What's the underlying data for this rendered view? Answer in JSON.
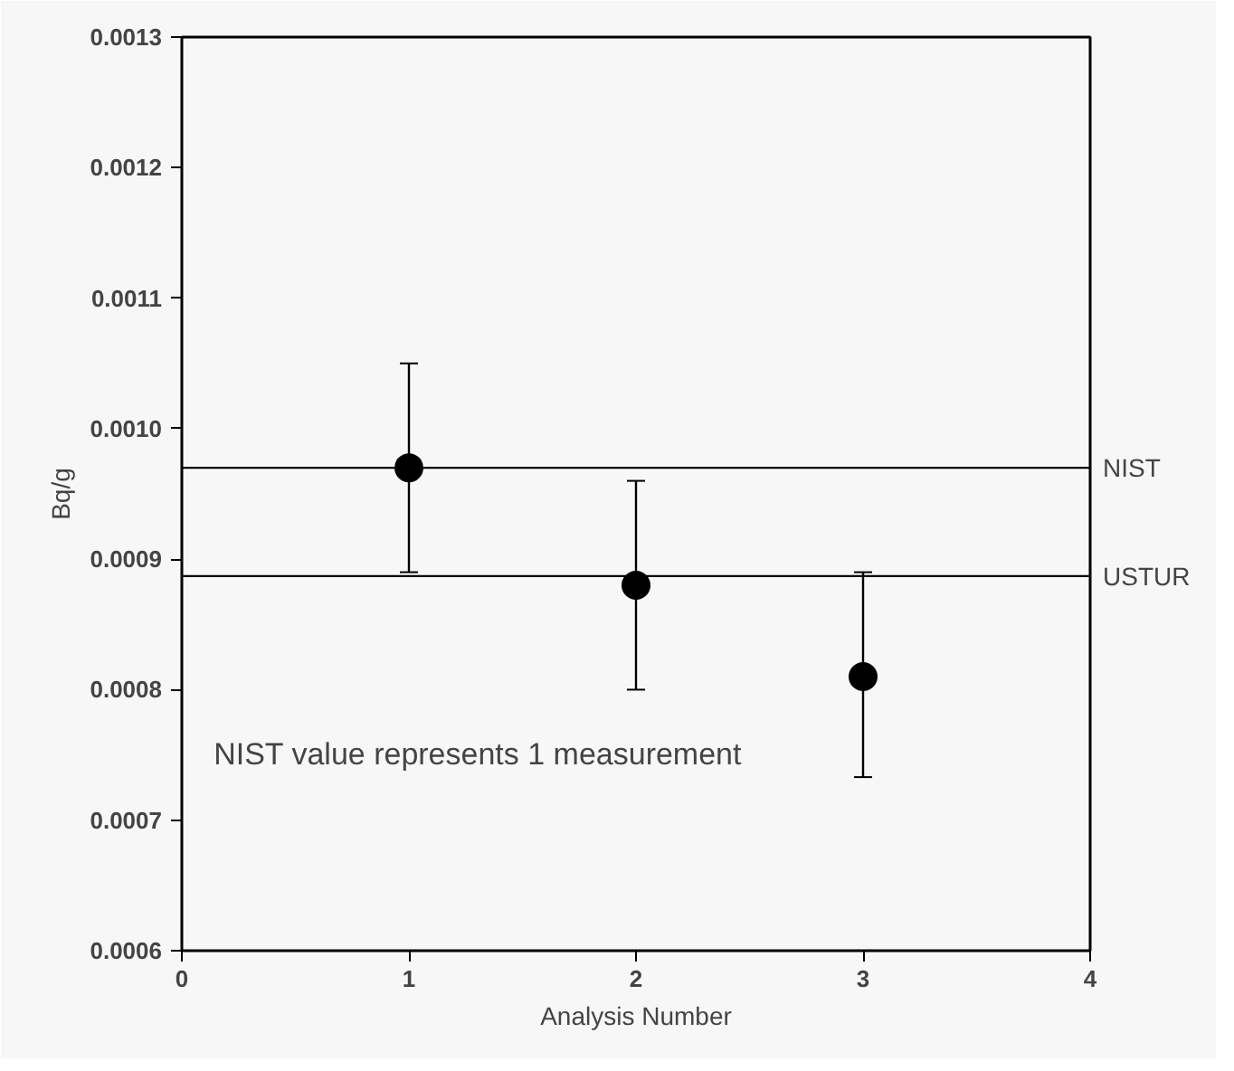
{
  "chart_data": {
    "type": "scatter",
    "xlabel": "Analysis Number",
    "ylabel": "Bq/g",
    "x": [
      1,
      2,
      3
    ],
    "series": [
      {
        "color": "#000000",
        "values": [
          0.00097,
          0.00088,
          0.00081
        ],
        "errors": [
          [
            0.00089,
            0.00105
          ],
          [
            0.0008,
            0.00096
          ],
          [
            0.000733,
            0.00089
          ]
        ]
      }
    ],
    "xlim": [
      0,
      4
    ],
    "xticks": [
      0,
      1,
      2,
      3,
      4
    ],
    "ylim": [
      0.0006,
      0.0013
    ],
    "yticks": [
      {
        "value": 0.0006,
        "label": "0.0006"
      },
      {
        "value": 0.0007,
        "label": "0.0007"
      },
      {
        "value": 0.0008,
        "label": "0.0008"
      },
      {
        "value": 0.0009,
        "label": "0.0009"
      },
      {
        "value": 0.001,
        "label": "0.0010"
      },
      {
        "value": 0.0011,
        "label": "0.0011"
      },
      {
        "value": 0.0012,
        "label": "0.0012"
      },
      {
        "value": 0.0013,
        "label": "0.0013"
      }
    ],
    "ref_lines": [
      {
        "axis": "y",
        "value": 0.00097,
        "label": "NIST",
        "color": "#000000"
      },
      {
        "axis": "y",
        "value": 0.000887,
        "label": "USTUR",
        "color": "#000000"
      }
    ],
    "annotations": [
      "NIST value represents 1 measurement"
    ],
    "marker": "circle",
    "grid": false
  }
}
